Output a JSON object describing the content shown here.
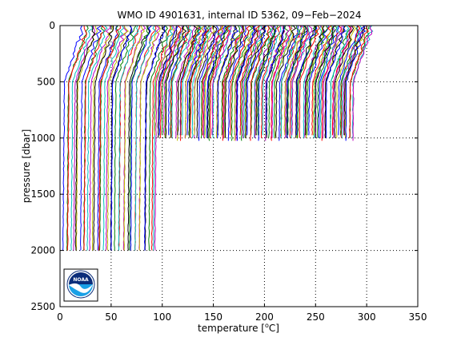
{
  "chart_data": {
    "type": "line",
    "title": "WMO ID 4901631, internal ID 5362, 09−Feb−2024",
    "xlabel_prefix": "temperature [",
    "xlabel_degree": "o",
    "xlabel_suffix": "C]",
    "ylabel": "pressure [dbar]",
    "xlim": [
      0,
      350
    ],
    "ylim": [
      0,
      2500
    ],
    "y_reversed": true,
    "x_ticks": [
      "0",
      "50",
      "100",
      "150",
      "200",
      "250",
      "300",
      "350"
    ],
    "y_ticks": [
      "0",
      "500",
      "1000",
      "1500",
      "2000",
      "2500"
    ],
    "x_tick_values": [
      0,
      50,
      100,
      150,
      200,
      250,
      300,
      350
    ],
    "y_tick_values": [
      0,
      500,
      1000,
      1500,
      2000,
      2500
    ],
    "grid": true,
    "grid_style": "dotted",
    "profile_count": 180,
    "deep_profile_count": 40,
    "deep_offset_start": 3,
    "deep_offset_end": 93,
    "deep_max_pressure": 2000,
    "shallow_offset_start": 93,
    "shallow_offset_end": 286,
    "shallow_max_pressure": 1000,
    "profile_surface_warming": 20,
    "series_colors": [
      "#0000ff",
      "#008000",
      "#ff0000",
      "#00bfbf",
      "#bf00bf",
      "#bfbf00",
      "#000000"
    ],
    "logo": {
      "text": "NOAA",
      "colors": {
        "sky": "#0b2d7a",
        "sea": "#1aa0e6",
        "bird": "#ffffff"
      }
    }
  }
}
